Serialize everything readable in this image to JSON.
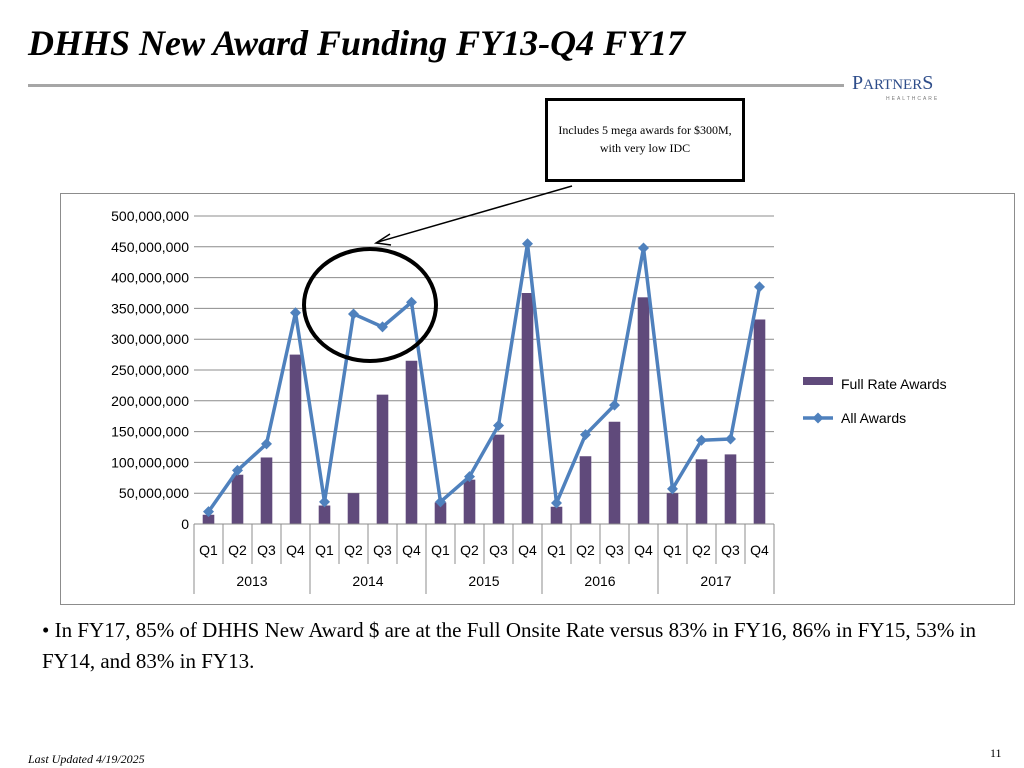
{
  "slide": {
    "title": "DHHS New Award Funding FY13-Q4 FY17",
    "callout": "Includes 5 mega awards for $300M, with very low IDC",
    "bullet": "• In FY17, 85% of DHHS New Award $ are at the Full Onsite Rate versus 83% in FY16, 86% in FY15, 53% in FY14, and 83% in FY13.",
    "footer_updated": "Last Updated 4/19/2025",
    "page_number": "11"
  },
  "logo": {
    "name_part1": "P",
    "name_part2": "ARTNER",
    "name_part3": "S",
    "subtitle": "HEALTHCARE"
  },
  "chart_data": {
    "type": "bar",
    "title": "",
    "xlabel": "",
    "ylabel": "",
    "ylim": [
      0,
      500000000
    ],
    "yticks": [
      "0",
      "50,000,000",
      "100,000,000",
      "150,000,000",
      "200,000,000",
      "250,000,000",
      "300,000,000",
      "350,000,000",
      "400,000,000",
      "450,000,000",
      "500,000,000"
    ],
    "categories": [
      "Q1",
      "Q2",
      "Q3",
      "Q4",
      "Q1",
      "Q2",
      "Q3",
      "Q4",
      "Q1",
      "Q2",
      "Q3",
      "Q4",
      "Q1",
      "Q2",
      "Q3",
      "Q4",
      "Q1",
      "Q2",
      "Q3",
      "Q4"
    ],
    "groups": [
      {
        "label": "2013",
        "span": 4
      },
      {
        "label": "2014",
        "span": 4
      },
      {
        "label": "2015",
        "span": 4
      },
      {
        "label": "2016",
        "span": 4
      },
      {
        "label": "2017",
        "span": 4
      }
    ],
    "grid": true,
    "legend_position": "right",
    "series": [
      {
        "name": "Full Rate Awards",
        "type": "bar",
        "color": "#604a7b",
        "values": [
          15000000,
          80000000,
          108000000,
          275000000,
          30000000,
          50000000,
          210000000,
          265000000,
          35000000,
          72000000,
          145000000,
          375000000,
          28000000,
          110000000,
          166000000,
          368000000,
          50000000,
          105000000,
          113000000,
          332000000
        ]
      },
      {
        "name": "All Awards",
        "type": "line",
        "color": "#4f81bd",
        "values": [
          20000000,
          87000000,
          130000000,
          343000000,
          36000000,
          341000000,
          320000000,
          360000000,
          36000000,
          77000000,
          160000000,
          455000000,
          34000000,
          145000000,
          193000000,
          448000000,
          57000000,
          136000000,
          138000000,
          385000000
        ]
      }
    ]
  }
}
